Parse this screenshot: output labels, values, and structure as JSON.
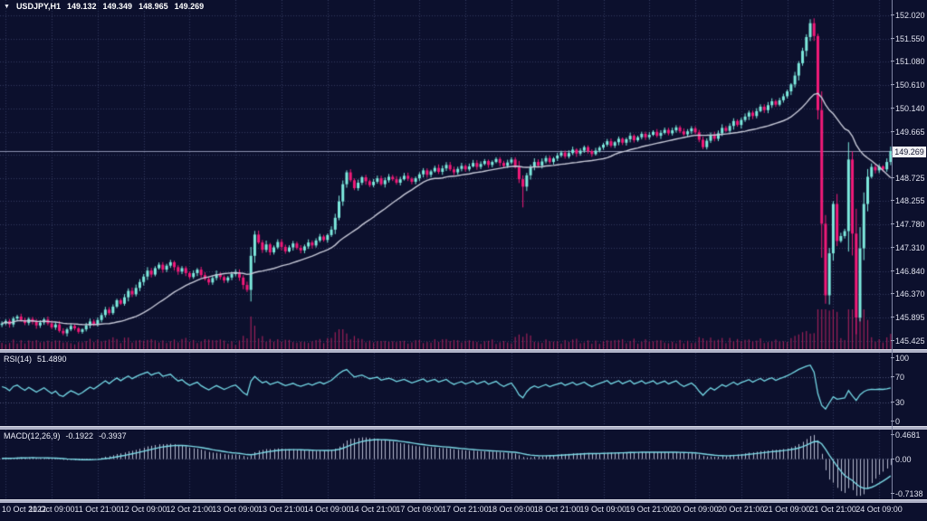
{
  "header": {
    "collapse_icon": "▼",
    "symbol_period": "USDJPY,H1",
    "open": "149.132",
    "high": "149.349",
    "low": "148.965",
    "close": "149.269"
  },
  "main": {
    "current_price": "149.269",
    "price_ticks": [
      "152.020",
      "151.550",
      "151.080",
      "150.610",
      "150.140",
      "149.665",
      "149.195",
      "148.725",
      "148.255",
      "147.780",
      "147.310",
      "146.840",
      "146.370",
      "145.895",
      "145.425"
    ]
  },
  "rsi": {
    "name": "RSI(14)",
    "value": "51.4890",
    "ticks": [
      100,
      70,
      30,
      0
    ],
    "overbought": 70,
    "oversold": 30
  },
  "macd": {
    "name": "MACD(12,26,9)",
    "value_main": "-0.1922",
    "value_signal": "-0.3937",
    "ticks": [
      "0.4681",
      "0.00",
      "-0.7138"
    ],
    "scale_max": 0.4681,
    "scale_min": -0.7138
  },
  "colors": {
    "background": "#0c102d",
    "grid": "#323a5e",
    "bullish": "#7de9dd",
    "bearish": "#f01a78",
    "ma_line": "#c7c9d8",
    "rsi_line": "#74d8e6",
    "rsi_levels": "#4d5478",
    "macd_signal": "#7cd9e6",
    "macd_histogram": "#b6bacf",
    "volume": "#9c2058",
    "current_price_line": "#8d92b0",
    "axis_text": "#dfe1ee"
  },
  "chart_data": {
    "type": "candlestick",
    "symbol": "USDJPY",
    "timeframe": "H1",
    "bars": 233,
    "y_axis_range": [
      145.26,
      152.33
    ],
    "x_axis_labels": [
      "10 Oct 2022",
      "11 Oct 09:00",
      "11 Oct 21:00",
      "12 Oct 09:00",
      "12 Oct 21:00",
      "13 Oct 09:00",
      "13 Oct 21:00",
      "14 Oct 09:00",
      "14 Oct 21:00",
      "17 Oct 09:00",
      "17 Oct 21:00",
      "18 Oct 09:00",
      "18 Oct 21:00",
      "19 Oct 09:00",
      "19 Oct 21:00",
      "20 Oct 09:00",
      "20 Oct 21:00",
      "21 Oct 09:00",
      "21 Oct 21:00",
      "24 Oct 09:00"
    ],
    "closes": [
      145.78,
      145.83,
      145.76,
      145.88,
      145.92,
      145.85,
      145.79,
      145.87,
      145.81,
      145.74,
      145.8,
      145.86,
      145.78,
      145.7,
      145.76,
      145.63,
      145.58,
      145.66,
      145.73,
      145.68,
      145.61,
      145.66,
      145.74,
      145.82,
      145.77,
      145.85,
      145.95,
      146.06,
      145.99,
      146.12,
      146.25,
      146.18,
      146.31,
      146.44,
      146.37,
      146.5,
      146.62,
      146.73,
      146.85,
      146.77,
      146.9,
      146.97,
      146.87,
      146.95,
      147.02,
      146.92,
      146.83,
      146.9,
      146.8,
      146.72,
      146.8,
      146.87,
      146.76,
      146.68,
      146.61,
      146.7,
      146.78,
      146.72,
      146.65,
      146.71,
      146.78,
      146.82,
      146.71,
      146.56,
      146.46,
      147.15,
      147.58,
      147.42,
      147.27,
      147.38,
      147.22,
      147.32,
      147.43,
      147.33,
      147.24,
      147.32,
      147.4,
      147.31,
      147.26,
      147.34,
      147.42,
      147.36,
      147.46,
      147.54,
      147.47,
      147.57,
      147.68,
      147.92,
      148.25,
      148.6,
      148.84,
      148.68,
      148.52,
      148.63,
      148.74,
      148.66,
      148.58,
      148.65,
      148.72,
      148.6,
      148.68,
      148.75,
      148.7,
      148.63,
      148.7,
      148.77,
      148.71,
      148.65,
      148.72,
      148.8,
      148.88,
      148.79,
      148.86,
      148.93,
      148.85,
      148.92,
      148.99,
      148.9,
      148.84,
      148.91,
      148.97,
      148.9,
      148.96,
      149.03,
      148.95,
      149.01,
      149.07,
      148.99,
      149.05,
      149.11,
      149.03,
      148.97,
      149.04,
      149.1,
      148.95,
      148.7,
      148.55,
      148.78,
      148.95,
      149.05,
      148.98,
      149.06,
      149.13,
      149.05,
      149.12,
      149.18,
      149.24,
      149.16,
      149.23,
      149.3,
      149.22,
      149.28,
      149.35,
      149.27,
      149.21,
      149.28,
      149.34,
      149.4,
      149.47,
      149.38,
      149.45,
      149.52,
      149.44,
      149.51,
      149.58,
      149.49,
      149.55,
      149.62,
      149.55,
      149.6,
      149.66,
      149.58,
      149.64,
      149.7,
      149.63,
      149.69,
      149.75,
      149.67,
      149.61,
      149.67,
      149.73,
      149.65,
      149.5,
      149.35,
      149.48,
      149.6,
      149.52,
      149.63,
      149.74,
      149.68,
      149.78,
      149.88,
      149.8,
      149.9,
      149.97,
      150.05,
      149.98,
      150.08,
      150.17,
      150.1,
      150.2,
      150.28,
      150.21,
      150.3,
      150.38,
      150.48,
      150.62,
      150.8,
      151.05,
      151.3,
      151.58,
      151.86,
      151.6,
      150.1,
      147.8,
      146.35,
      147.2,
      148.2,
      147.45,
      147.55,
      147.65,
      149.1,
      147.6,
      145.9,
      147.3,
      148.2,
      148.75,
      148.95,
      148.88,
      148.96,
      148.9,
      149.05,
      149.27
    ],
    "wick_overrides": {
      "136": {
        "low": 148.13
      },
      "211": {
        "high": 151.94
      },
      "215": {
        "low": 146.18
      },
      "221": {
        "high": 149.45
      },
      "223": {
        "low": 145.56
      }
    },
    "indicators": [
      {
        "type": "SMA",
        "period": 24
      },
      {
        "type": "RSI",
        "period": 14,
        "last": 51.489
      },
      {
        "type": "MACD",
        "fast": 12,
        "slow": 26,
        "signal": 9,
        "last_main": -0.1922,
        "last_signal": -0.3937
      },
      {
        "type": "Volume"
      }
    ]
  }
}
